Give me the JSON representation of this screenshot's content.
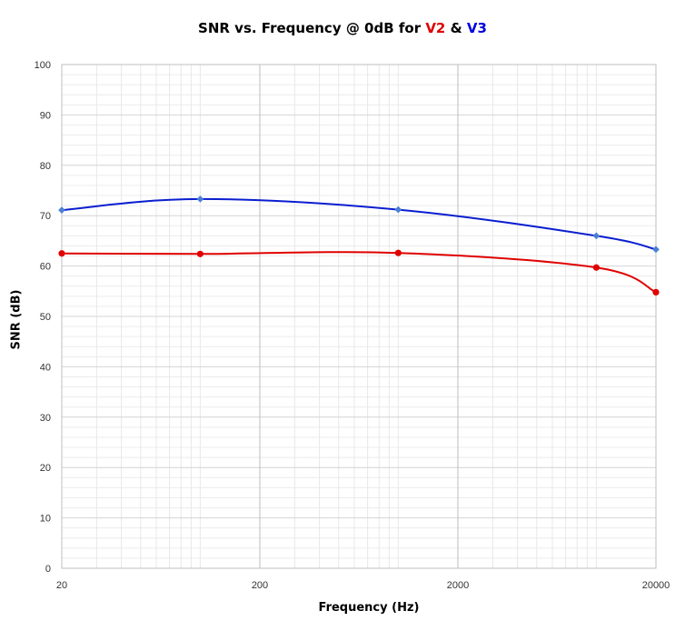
{
  "chart_data": {
    "type": "line",
    "title_parts": [
      "SNR vs. Frequency @ 0dB for ",
      "V2",
      " & ",
      "V3"
    ],
    "xlabel": "Frequency (Hz)",
    "ylabel": "SNR (dB)",
    "x_scale": "log",
    "xlim": [
      20,
      20000
    ],
    "ylim": [
      0,
      100
    ],
    "x_ticks": [
      20,
      200,
      2000,
      20000
    ],
    "y_ticks": [
      0,
      10,
      20,
      30,
      40,
      50,
      60,
      70,
      80,
      90,
      100
    ],
    "grid": true,
    "legend": "none",
    "series": [
      {
        "name": "V2",
        "color": "#e00000",
        "marker": "circle",
        "x": [
          20,
          100,
          1000,
          10000,
          20000
        ],
        "y": [
          62.5,
          62.4,
          62.6,
          59.7,
          54.8
        ]
      },
      {
        "name": "V3",
        "color": "#0a1ed0",
        "marker": "diamond",
        "x": [
          20,
          100,
          1000,
          10000,
          20000
        ],
        "y": [
          71.1,
          73.3,
          71.2,
          66.0,
          63.3
        ]
      }
    ]
  }
}
